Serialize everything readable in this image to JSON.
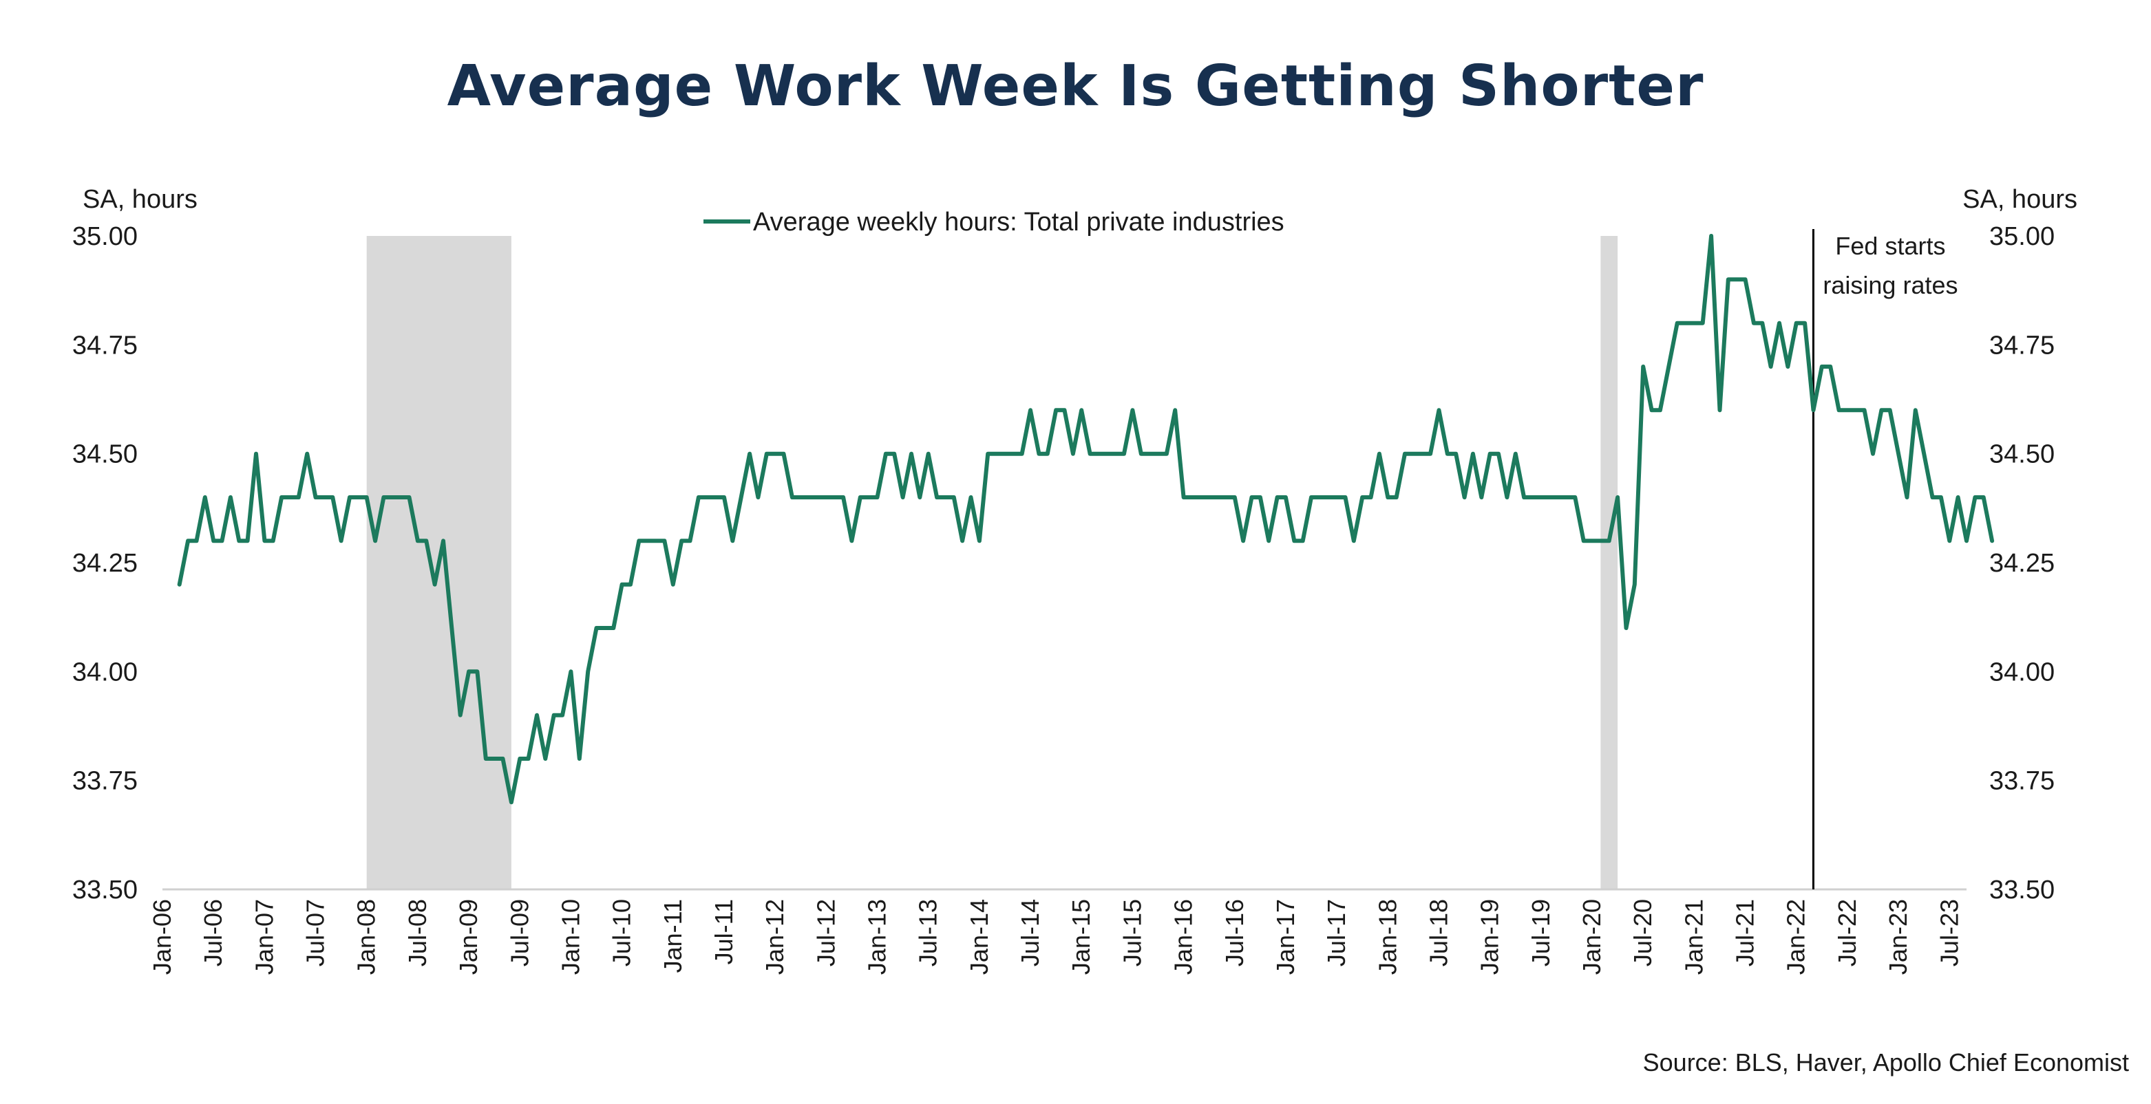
{
  "title": "Average Work Week Is Getting Shorter",
  "source": "Source: BLS, Haver, Apollo Chief Economist",
  "chart_data": {
    "type": "line",
    "left_axis_label": "SA, hours",
    "right_axis_label": "SA, hours",
    "ylim": [
      33.5,
      35.0
    ],
    "yticks": [
      "33.50",
      "33.75",
      "34.00",
      "34.25",
      "34.50",
      "34.75",
      "35.00"
    ],
    "xlim": [
      "2006-01",
      "2023-09"
    ],
    "xtick_labels": [
      "Jan-06",
      "Jul-06",
      "Jan-07",
      "Jul-07",
      "Jan-08",
      "Jul-08",
      "Jan-09",
      "Jul-09",
      "Jan-10",
      "Jul-10",
      "Jan-11",
      "Jul-11",
      "Jan-12",
      "Jul-12",
      "Jan-13",
      "Jul-13",
      "Jan-14",
      "Jul-14",
      "Jan-15",
      "Jul-15",
      "Jan-16",
      "Jul-16",
      "Jan-17",
      "Jul-17",
      "Jan-18",
      "Jul-18",
      "Jan-19",
      "Jul-19",
      "Jan-20",
      "Jul-20",
      "Jan-21",
      "Jul-21",
      "Jan-22",
      "Jul-22",
      "Jan-23",
      "Jul-23"
    ],
    "grid": false,
    "legend_position": "top-center",
    "line_color": "#1c7a5d",
    "recession_color": "#d9d9d9",
    "recessions": [
      {
        "start": "2008-01",
        "end": "2009-06"
      },
      {
        "start": "2020-02",
        "end": "2020-04"
      }
    ],
    "annotations": [
      {
        "x": "2022-03",
        "line1": "Fed starts",
        "line2": "raising rates"
      }
    ],
    "series": [
      {
        "name": "Average weekly hours: Total private industries",
        "start": "2006-03",
        "values": [
          34.2,
          34.3,
          34.3,
          34.4,
          34.3,
          34.3,
          34.4,
          34.3,
          34.3,
          34.5,
          34.3,
          34.3,
          34.4,
          34.4,
          34.4,
          34.5,
          34.4,
          34.4,
          34.4,
          34.3,
          34.4,
          34.4,
          34.4,
          34.3,
          34.4,
          34.4,
          34.4,
          34.4,
          34.3,
          34.3,
          34.2,
          34.3,
          34.1,
          33.9,
          34.0,
          34.0,
          33.8,
          33.8,
          33.8,
          33.7,
          33.8,
          33.8,
          33.9,
          33.8,
          33.9,
          33.9,
          34.0,
          33.8,
          34.0,
          34.1,
          34.1,
          34.1,
          34.2,
          34.2,
          34.3,
          34.3,
          34.3,
          34.3,
          34.2,
          34.3,
          34.3,
          34.4,
          34.4,
          34.4,
          34.4,
          34.3,
          34.4,
          34.5,
          34.4,
          34.5,
          34.5,
          34.5,
          34.4,
          34.4,
          34.4,
          34.4,
          34.4,
          34.4,
          34.4,
          34.3,
          34.4,
          34.4,
          34.4,
          34.5,
          34.5,
          34.4,
          34.5,
          34.4,
          34.5,
          34.4,
          34.4,
          34.4,
          34.3,
          34.4,
          34.3,
          34.5,
          34.5,
          34.5,
          34.5,
          34.5,
          34.6,
          34.5,
          34.5,
          34.6,
          34.6,
          34.5,
          34.6,
          34.5,
          34.5,
          34.5,
          34.5,
          34.5,
          34.6,
          34.5,
          34.5,
          34.5,
          34.5,
          34.6,
          34.4,
          34.4,
          34.4,
          34.4,
          34.4,
          34.4,
          34.4,
          34.3,
          34.4,
          34.4,
          34.3,
          34.4,
          34.4,
          34.3,
          34.3,
          34.4,
          34.4,
          34.4,
          34.4,
          34.4,
          34.3,
          34.4,
          34.4,
          34.5,
          34.4,
          34.4,
          34.5,
          34.5,
          34.5,
          34.5,
          34.6,
          34.5,
          34.5,
          34.4,
          34.5,
          34.4,
          34.5,
          34.5,
          34.4,
          34.5,
          34.4,
          34.4,
          34.4,
          34.4,
          34.4,
          34.4,
          34.4,
          34.3,
          34.3,
          34.3,
          34.3,
          34.4,
          34.1,
          34.2,
          34.7,
          34.6,
          34.6,
          34.7,
          34.8,
          34.8,
          34.8,
          34.8,
          35.0,
          34.6,
          34.9,
          34.9,
          34.9,
          34.8,
          34.8,
          34.7,
          34.8,
          34.7,
          34.8,
          34.8,
          34.6,
          34.7,
          34.7,
          34.6,
          34.6,
          34.6,
          34.6,
          34.5,
          34.6,
          34.6,
          34.5,
          34.4,
          34.6,
          34.5,
          34.4,
          34.4,
          34.3,
          34.4,
          34.3,
          34.4,
          34.4,
          34.3
        ]
      }
    ]
  }
}
